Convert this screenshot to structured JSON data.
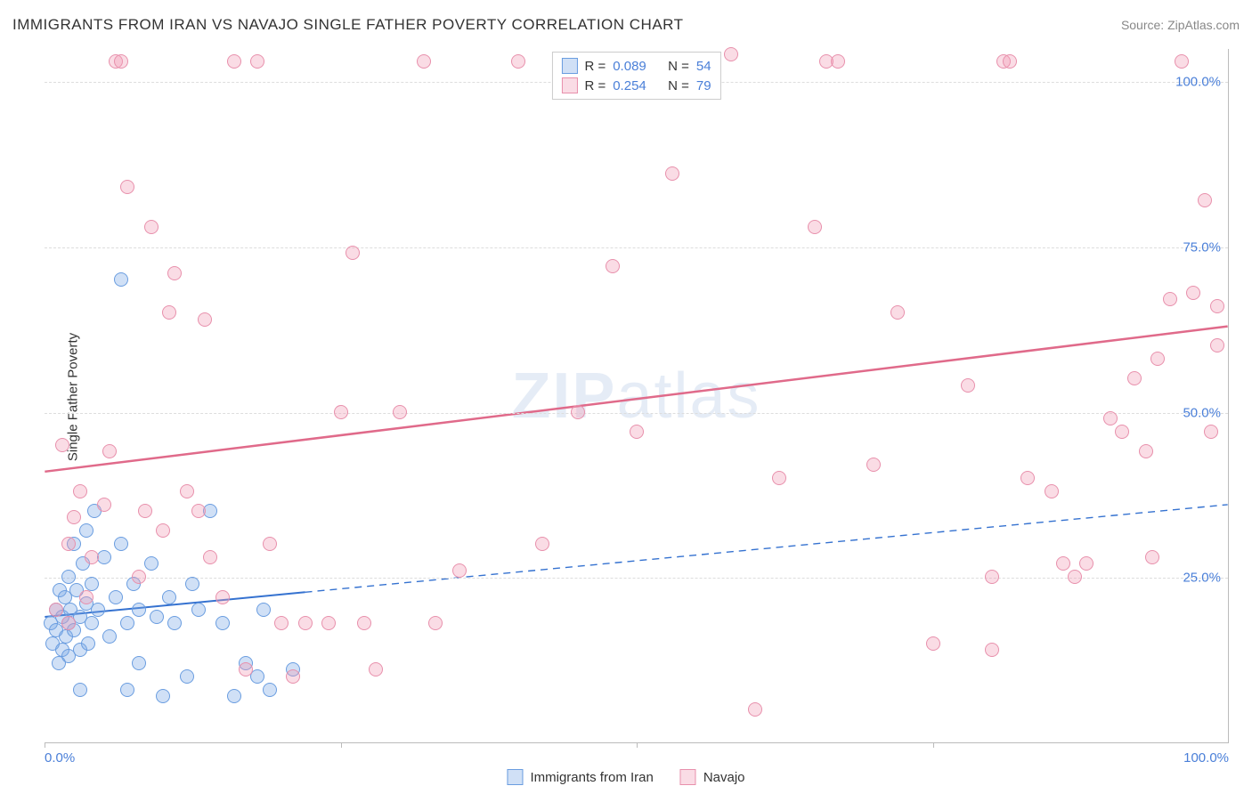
{
  "header": {
    "title": "IMMIGRANTS FROM IRAN VS NAVAJO SINGLE FATHER POVERTY CORRELATION CHART",
    "source": "Source: ZipAtlas.com"
  },
  "yaxis_label": "Single Father Poverty",
  "watermark_a": "ZIP",
  "watermark_b": "atlas",
  "chart": {
    "type": "scatter",
    "background_color": "#ffffff",
    "grid_color": "#dddddd",
    "border_color": "#bbbbbb",
    "xlim": [
      0,
      100
    ],
    "ylim": [
      0,
      105
    ],
    "yticks": [
      {
        "v": 25,
        "label": "25.0%"
      },
      {
        "v": 50,
        "label": "50.0%"
      },
      {
        "v": 75,
        "label": "75.0%"
      },
      {
        "v": 100,
        "label": "100.0%"
      }
    ],
    "xtick_marks": [
      0,
      25,
      50,
      75
    ],
    "xtick_labels": [
      {
        "v": 0,
        "label": "0.0%",
        "align": "left"
      },
      {
        "v": 100,
        "label": "100.0%",
        "align": "right"
      }
    ],
    "tick_color": "#4a7fd8",
    "tick_fontsize": 15,
    "marker_radius": 8,
    "marker_stroke": 1.5,
    "series": [
      {
        "id": "iran",
        "label": "Immigrants from Iran",
        "fill_color": "rgba(120, 165, 230, 0.35)",
        "stroke_color": "#6a9de0",
        "R": "0.089",
        "N": "54",
        "trend": {
          "x1": 0,
          "y1": 19,
          "x2": 100,
          "y2": 36,
          "solid_until": 22,
          "color": "#3572d0",
          "width": 2
        },
        "points": [
          [
            0.5,
            18
          ],
          [
            0.7,
            15
          ],
          [
            1,
            20
          ],
          [
            1,
            17
          ],
          [
            1.2,
            12
          ],
          [
            1.3,
            23
          ],
          [
            1.5,
            19
          ],
          [
            1.5,
            14
          ],
          [
            1.7,
            22
          ],
          [
            1.8,
            16
          ],
          [
            2,
            18
          ],
          [
            2,
            13
          ],
          [
            2,
            25
          ],
          [
            2.2,
            20
          ],
          [
            2.5,
            17
          ],
          [
            2.5,
            30
          ],
          [
            2.7,
            23
          ],
          [
            3,
            19
          ],
          [
            3,
            14
          ],
          [
            3,
            8
          ],
          [
            3.2,
            27
          ],
          [
            3.5,
            21
          ],
          [
            3.5,
            32
          ],
          [
            3.7,
            15
          ],
          [
            4,
            24
          ],
          [
            4,
            18
          ],
          [
            4.2,
            35
          ],
          [
            4.5,
            20
          ],
          [
            5,
            28
          ],
          [
            5.5,
            16
          ],
          [
            6,
            22
          ],
          [
            6.5,
            70
          ],
          [
            6.5,
            30
          ],
          [
            7,
            18
          ],
          [
            7,
            8
          ],
          [
            7.5,
            24
          ],
          [
            8,
            20
          ],
          [
            8,
            12
          ],
          [
            9,
            27
          ],
          [
            9.5,
            19
          ],
          [
            10,
            7
          ],
          [
            10.5,
            22
          ],
          [
            11,
            18
          ],
          [
            12,
            10
          ],
          [
            12.5,
            24
          ],
          [
            13,
            20
          ],
          [
            14,
            35
          ],
          [
            15,
            18
          ],
          [
            16,
            7
          ],
          [
            17,
            12
          ],
          [
            18,
            10
          ],
          [
            18.5,
            20
          ],
          [
            19,
            8
          ],
          [
            21,
            11
          ]
        ]
      },
      {
        "id": "navajo",
        "label": "Navajo",
        "fill_color": "rgba(240, 155, 180, 0.35)",
        "stroke_color": "#e890ac",
        "R": "0.254",
        "N": "79",
        "trend": {
          "x1": 0,
          "y1": 41,
          "x2": 100,
          "y2": 63,
          "solid_until": 100,
          "color": "#e06a8a",
          "width": 2.5
        },
        "points": [
          [
            1,
            20
          ],
          [
            1.5,
            45
          ],
          [
            2,
            30
          ],
          [
            2,
            18
          ],
          [
            2.5,
            34
          ],
          [
            3,
            38
          ],
          [
            3.5,
            22
          ],
          [
            4,
            28
          ],
          [
            5,
            36
          ],
          [
            5.5,
            44
          ],
          [
            6,
            103
          ],
          [
            6.5,
            103
          ],
          [
            7,
            84
          ],
          [
            8,
            25
          ],
          [
            8.5,
            35
          ],
          [
            9,
            78
          ],
          [
            10,
            32
          ],
          [
            10.5,
            65
          ],
          [
            11,
            71
          ],
          [
            12,
            38
          ],
          [
            13,
            35
          ],
          [
            13.5,
            64
          ],
          [
            14,
            28
          ],
          [
            15,
            22
          ],
          [
            16,
            103
          ],
          [
            17,
            11
          ],
          [
            18,
            103
          ],
          [
            19,
            30
          ],
          [
            20,
            18
          ],
          [
            21,
            10
          ],
          [
            22,
            18
          ],
          [
            24,
            18
          ],
          [
            25,
            50
          ],
          [
            26,
            74
          ],
          [
            27,
            18
          ],
          [
            28,
            11
          ],
          [
            30,
            50
          ],
          [
            32,
            103
          ],
          [
            33,
            18
          ],
          [
            35,
            26
          ],
          [
            40,
            103
          ],
          [
            42,
            30
          ],
          [
            45,
            50
          ],
          [
            48,
            72
          ],
          [
            50,
            47
          ],
          [
            53,
            86
          ],
          [
            55,
            103
          ],
          [
            58,
            104
          ],
          [
            60,
            5
          ],
          [
            62,
            40
          ],
          [
            65,
            78
          ],
          [
            66,
            103
          ],
          [
            67,
            103
          ],
          [
            70,
            42
          ],
          [
            72,
            65
          ],
          [
            75,
            15
          ],
          [
            78,
            54
          ],
          [
            80,
            25
          ],
          [
            80,
            14
          ],
          [
            81,
            103
          ],
          [
            81.5,
            103
          ],
          [
            83,
            40
          ],
          [
            85,
            38
          ],
          [
            86,
            27
          ],
          [
            87,
            25
          ],
          [
            88,
            27
          ],
          [
            90,
            49
          ],
          [
            91,
            47
          ],
          [
            92,
            55
          ],
          [
            93,
            44
          ],
          [
            93.5,
            28
          ],
          [
            94,
            58
          ],
          [
            95,
            67
          ],
          [
            96,
            103
          ],
          [
            97,
            68
          ],
          [
            98,
            82
          ],
          [
            98.5,
            47
          ],
          [
            99,
            60
          ],
          [
            99,
            66
          ]
        ]
      }
    ]
  },
  "legend_top": {
    "r_label": "R =",
    "n_label": "N ="
  }
}
